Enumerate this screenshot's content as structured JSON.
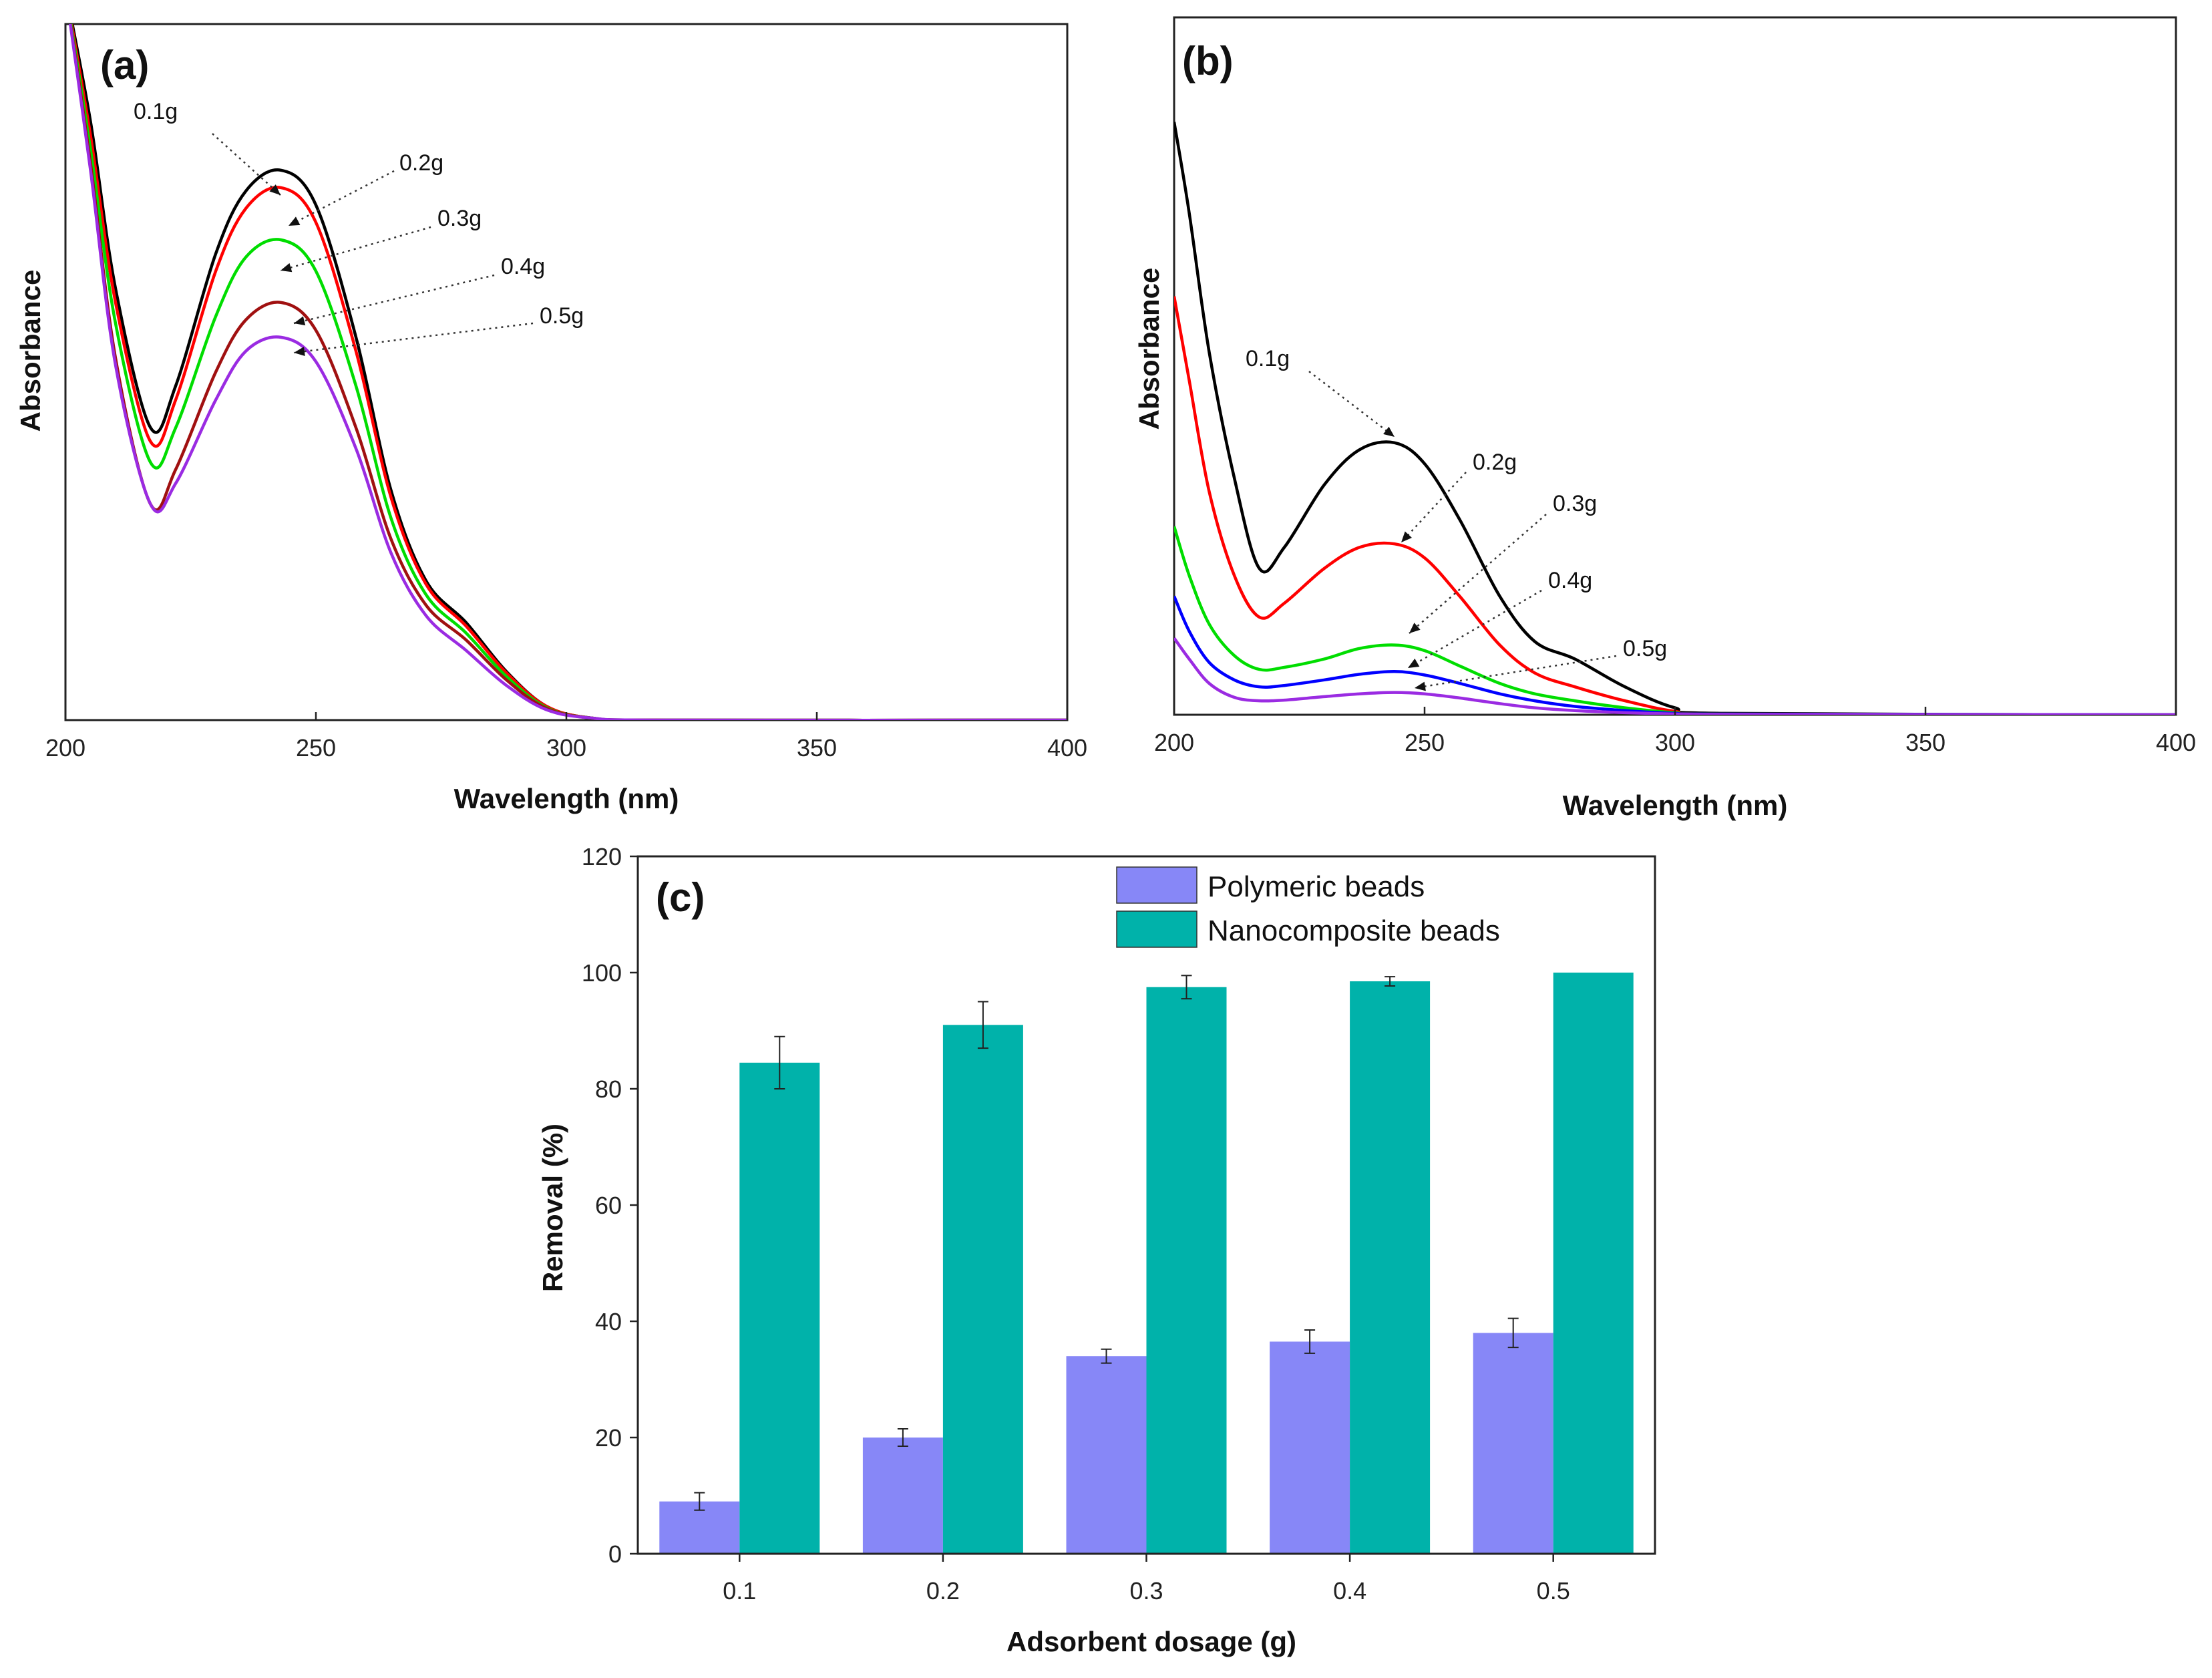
{
  "chart_data": [
    {
      "id": "a",
      "type": "line",
      "panel_label": "(a)",
      "xlabel": "Wavelength (nm)",
      "ylabel": "Absorbance",
      "xlim": [
        200,
        400
      ],
      "ylim": [
        0,
        1.0
      ],
      "xticks": [
        "200",
        "250",
        "300",
        "350",
        "400"
      ],
      "y_tick_labels": false,
      "grid": false,
      "series": [
        {
          "name": "0.1g",
          "color": "#000000",
          "min_value": 0.42,
          "peak": 0.79,
          "x": [
            200,
            205,
            210,
            217,
            222,
            230,
            236,
            243,
            250,
            258,
            265,
            272,
            280,
            288,
            296,
            305,
            320,
            400
          ],
          "y": [
            1.05,
            0.86,
            0.62,
            0.42,
            0.48,
            0.67,
            0.76,
            0.79,
            0.74,
            0.55,
            0.33,
            0.2,
            0.14,
            0.07,
            0.02,
            0.003,
            0,
            0
          ]
        },
        {
          "name": "0.2g",
          "color": "#ff0000",
          "min_value": 0.4,
          "peak": 0.765,
          "x": [
            200,
            205,
            210,
            217,
            222,
            230,
            236,
            243,
            250,
            258,
            265,
            272,
            280,
            288,
            296,
            305,
            320,
            400
          ],
          "y": [
            1.05,
            0.84,
            0.6,
            0.4,
            0.46,
            0.645,
            0.735,
            0.765,
            0.715,
            0.53,
            0.32,
            0.195,
            0.135,
            0.068,
            0.02,
            0.003,
            0,
            0
          ]
        },
        {
          "name": "0.3g",
          "color": "#00dd00",
          "min_value": 0.37,
          "peak": 0.69,
          "x": [
            200,
            205,
            210,
            217,
            222,
            230,
            236,
            243,
            250,
            258,
            265,
            272,
            280,
            288,
            296,
            305,
            320,
            400
          ],
          "y": [
            1.05,
            0.82,
            0.57,
            0.37,
            0.42,
            0.58,
            0.665,
            0.69,
            0.645,
            0.48,
            0.29,
            0.18,
            0.125,
            0.063,
            0.018,
            0.003,
            0,
            0
          ]
        },
        {
          "name": "0.4g",
          "color": "#a01010",
          "min_value": 0.31,
          "peak": 0.6,
          "x": [
            200,
            205,
            210,
            217,
            222,
            230,
            236,
            243,
            250,
            258,
            265,
            272,
            280,
            288,
            296,
            305,
            320,
            400
          ],
          "y": [
            1.05,
            0.8,
            0.52,
            0.31,
            0.36,
            0.5,
            0.575,
            0.6,
            0.56,
            0.42,
            0.26,
            0.165,
            0.115,
            0.058,
            0.017,
            0.003,
            0,
            0
          ]
        },
        {
          "name": "0.5g",
          "color": "#9a2be2",
          "min_value": 0.31,
          "peak": 0.55,
          "x": [
            200,
            205,
            210,
            217,
            222,
            230,
            236,
            243,
            250,
            258,
            265,
            272,
            280,
            288,
            296,
            305,
            320,
            400
          ],
          "y": [
            1.05,
            0.79,
            0.51,
            0.31,
            0.34,
            0.46,
            0.53,
            0.55,
            0.515,
            0.39,
            0.24,
            0.15,
            0.1,
            0.05,
            0.015,
            0.003,
            0,
            0
          ]
        }
      ],
      "annotations": [
        "0.1g",
        "0.2g",
        "0.3g",
        "0.4g",
        "0.5g"
      ]
    },
    {
      "id": "b",
      "type": "line",
      "panel_label": "(b)",
      "xlabel": "Wavelength (nm)",
      "ylabel": "Absorbance",
      "xlim": [
        200,
        400
      ],
      "ylim": [
        0,
        1.0
      ],
      "xticks": [
        "200",
        "250",
        "300",
        "350",
        "400"
      ],
      "y_tick_labels": false,
      "grid": false,
      "series": [
        {
          "name": "0.1g",
          "color": "#000000",
          "x": [
            200,
            203,
            207,
            212,
            217,
            222,
            230,
            237,
            244,
            250,
            257,
            265,
            272,
            280,
            290,
            300,
            310,
            400
          ],
          "y": [
            0.85,
            0.72,
            0.52,
            0.34,
            0.21,
            0.24,
            0.33,
            0.38,
            0.39,
            0.36,
            0.28,
            0.17,
            0.105,
            0.08,
            0.04,
            0.01,
            0.002,
            0
          ]
        },
        {
          "name": "0.2g",
          "color": "#ff0000",
          "x": [
            200,
            203,
            207,
            212,
            217,
            222,
            230,
            237,
            244,
            250,
            257,
            265,
            272,
            280,
            290,
            300,
            310,
            400
          ],
          "y": [
            0.6,
            0.48,
            0.32,
            0.2,
            0.14,
            0.16,
            0.21,
            0.24,
            0.245,
            0.225,
            0.17,
            0.1,
            0.06,
            0.04,
            0.02,
            0.005,
            0.001,
            0
          ]
        },
        {
          "name": "0.3g",
          "color": "#00dd00",
          "x": [
            200,
            203,
            207,
            212,
            217,
            222,
            230,
            237,
            244,
            250,
            257,
            265,
            272,
            280,
            290,
            300,
            310,
            400
          ],
          "y": [
            0.27,
            0.2,
            0.13,
            0.085,
            0.065,
            0.068,
            0.08,
            0.095,
            0.1,
            0.092,
            0.07,
            0.045,
            0.03,
            0.02,
            0.01,
            0.003,
            0.001,
            0
          ]
        },
        {
          "name": "0.4g",
          "color": "#0000ff",
          "x": [
            200,
            203,
            207,
            212,
            217,
            222,
            230,
            237,
            244,
            250,
            257,
            265,
            272,
            280,
            290,
            300,
            310,
            400
          ],
          "y": [
            0.17,
            0.12,
            0.075,
            0.05,
            0.04,
            0.042,
            0.05,
            0.058,
            0.062,
            0.057,
            0.045,
            0.03,
            0.02,
            0.012,
            0.006,
            0.002,
            0.001,
            0
          ]
        },
        {
          "name": "0.5g",
          "color": "#9a2be2",
          "x": [
            200,
            203,
            207,
            212,
            217,
            222,
            230,
            237,
            244,
            250,
            257,
            265,
            272,
            280,
            290,
            300,
            310,
            400
          ],
          "y": [
            0.11,
            0.08,
            0.045,
            0.025,
            0.02,
            0.021,
            0.026,
            0.03,
            0.032,
            0.03,
            0.024,
            0.016,
            0.01,
            0.006,
            0.003,
            0.001,
            0.0005,
            0
          ]
        }
      ],
      "annotations": [
        "0.1g",
        "0.2g",
        "0.3g",
        "0.4g",
        "0.5g"
      ]
    },
    {
      "id": "c",
      "type": "bar",
      "panel_label": "(c)",
      "xlabel": "Adsorbent dosage (g)",
      "ylabel": "Removal (%)",
      "ylim": [
        0,
        120
      ],
      "yticks": [
        "0",
        "20",
        "40",
        "60",
        "80",
        "100",
        "120"
      ],
      "categories": [
        "0.1",
        "0.2",
        "0.3",
        "0.4",
        "0.5"
      ],
      "legend_position": "top-right",
      "series": [
        {
          "name": "Polymeric beads",
          "color": "#8787f7",
          "values": [
            9,
            20,
            34,
            36.5,
            38
          ],
          "errors": [
            1.5,
            1.5,
            1.2,
            2.0,
            2.5
          ]
        },
        {
          "name": "Nanocomposite beads",
          "color": "#00b2aa",
          "values": [
            84.5,
            91,
            97.5,
            98.5,
            100
          ],
          "errors": [
            4.5,
            4.0,
            2.0,
            0.8,
            0
          ]
        }
      ]
    }
  ]
}
